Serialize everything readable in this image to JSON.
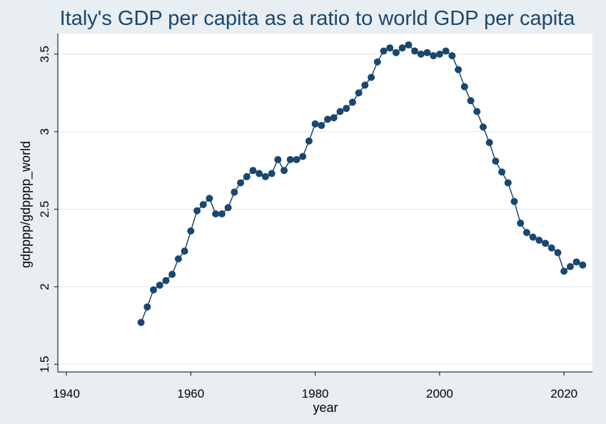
{
  "chart_data": {
    "type": "line",
    "title": "Italy's GDP per capita as a ratio to world GDP per capita",
    "xlabel": "year",
    "ylabel": "gdpppp/gdpppp_world",
    "xlim": [
      1939,
      2024
    ],
    "ylim": [
      1.45,
      3.6
    ],
    "xticks": [
      1940,
      1960,
      1980,
      2000,
      2020
    ],
    "yticks": [
      1.5,
      2,
      2.5,
      3,
      3.5
    ],
    "xtick_labels": [
      "1940",
      "1960",
      "1980",
      "2000",
      "2020"
    ],
    "ytick_labels": [
      "1.5",
      "2",
      "2.5",
      "3",
      "3.5"
    ],
    "grid": "horizontal",
    "legend": "none",
    "colors": {
      "plot_bg": "#ffffff",
      "outer_bg": "#e8eef2",
      "line": "#1a476f",
      "title": "#1a476f",
      "grid": "#e8eef2"
    },
    "series": [
      {
        "x": [
          1952,
          1953,
          1954,
          1955,
          1956,
          1957,
          1958,
          1959,
          1960,
          1961,
          1962,
          1963,
          1964,
          1965,
          1966,
          1967,
          1968,
          1969,
          1970,
          1971,
          1972,
          1973,
          1974,
          1975,
          1976,
          1977,
          1978,
          1979,
          1980,
          1981,
          1982,
          1983,
          1984,
          1985,
          1986,
          1987,
          1988,
          1989,
          1990,
          1991,
          1992,
          1993,
          1994,
          1995,
          1996,
          1997,
          1998,
          1999,
          2000,
          2001,
          2002,
          2003,
          2004,
          2005,
          2006,
          2007,
          2008,
          2009,
          2010,
          2011,
          2012,
          2013,
          2014,
          2015,
          2016,
          2017,
          2018,
          2019,
          2020,
          2021,
          2022,
          2023
        ],
        "values": [
          1.77,
          1.87,
          1.98,
          2.01,
          2.04,
          2.08,
          2.18,
          2.23,
          2.36,
          2.49,
          2.53,
          2.57,
          2.47,
          2.47,
          2.51,
          2.61,
          2.67,
          2.71,
          2.75,
          2.73,
          2.71,
          2.73,
          2.82,
          2.75,
          2.82,
          2.82,
          2.84,
          2.94,
          3.05,
          3.04,
          3.08,
          3.09,
          3.13,
          3.15,
          3.19,
          3.25,
          3.3,
          3.35,
          3.45,
          3.52,
          3.54,
          3.51,
          3.54,
          3.56,
          3.52,
          3.5,
          3.51,
          3.49,
          3.5,
          3.52,
          3.49,
          3.4,
          3.29,
          3.2,
          3.13,
          3.03,
          2.93,
          2.81,
          2.74,
          2.67,
          2.55,
          2.41,
          2.35,
          2.32,
          2.3,
          2.28,
          2.25,
          2.22,
          2.1,
          2.13,
          2.16,
          2.14
        ]
      }
    ]
  }
}
